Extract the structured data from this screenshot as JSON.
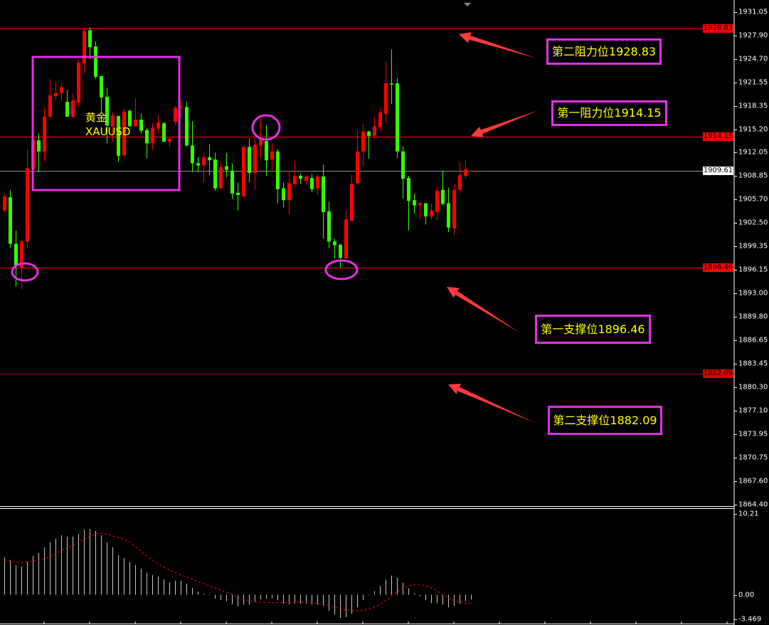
{
  "chart_data": {
    "type": "candlestick",
    "symbol": {
      "cn": "黄金",
      "code": "XAUUSD"
    },
    "colors": {
      "up": "#ff0000",
      "down": "#33ff00",
      "background": "#000000",
      "annotation_box": "#e62ee6",
      "annotation_text": "#ffff00",
      "level_line": "#ff0000",
      "current_price_line": "#8c8c8c"
    },
    "y_range": [
      1864.4,
      1931.05
    ],
    "y_ticks": [
      "1931.05",
      "1927.90",
      "1924.70",
      "1921.55",
      "1918.35",
      "1915.20",
      "1912.05",
      "1908.85",
      "1905.70",
      "1902.50",
      "1899.35",
      "1896.15",
      "1893.00",
      "1889.80",
      "1886.65",
      "1883.45",
      "1880.30",
      "1877.10",
      "1873.95",
      "1870.75",
      "1867.60",
      "1864.40"
    ],
    "current_price": "1909.61",
    "levels": [
      {
        "price": "1928.83",
        "label": "第二阻力位1928.83",
        "kind": "resistance"
      },
      {
        "price": "1914.15",
        "label": "第一阻力位1914.15",
        "kind": "resistance"
      },
      {
        "price": "1896.46",
        "label": "第一支撑位1896.46",
        "kind": "support"
      },
      {
        "price": "1882.09",
        "label": "第二支撑位1882.09",
        "kind": "support"
      }
    ],
    "ohlc": [
      [
        1904.2,
        1906.4,
        1904.0,
        1906.1
      ],
      [
        1906.0,
        1907.0,
        1899.2,
        1899.7
      ],
      [
        1899.7,
        1901.5,
        1893.9,
        1896.8
      ],
      [
        1896.4,
        1900.2,
        1893.6,
        1900.0
      ],
      [
        1900.0,
        1912.4,
        1899.1,
        1909.9
      ],
      [
        1909.8,
        1914.4,
        1909.6,
        1913.7
      ],
      [
        1913.7,
        1914.6,
        1909.4,
        1912.2
      ],
      [
        1912.2,
        1918.0,
        1910.8,
        1916.9
      ],
      [
        1916.9,
        1922.0,
        1916.7,
        1919.8
      ],
      [
        1919.7,
        1921.6,
        1919.2,
        1920.1
      ],
      [
        1920.1,
        1921.5,
        1919.0,
        1920.9
      ],
      [
        1918.9,
        1920.5,
        1916.9,
        1916.9
      ],
      [
        1916.9,
        1920.0,
        1916.7,
        1919.1
      ],
      [
        1918.8,
        1924.6,
        1918.2,
        1924.2
      ],
      [
        1924.1,
        1928.8,
        1922.7,
        1928.5
      ],
      [
        1928.6,
        1929.0,
        1924.7,
        1926.3
      ],
      [
        1926.4,
        1927.1,
        1922.0,
        1922.3
      ],
      [
        1922.4,
        1922.4,
        1917.6,
        1919.5
      ],
      [
        1919.6,
        1920.8,
        1913.3,
        1915.7
      ],
      [
        1915.6,
        1917.5,
        1913.5,
        1917.1
      ],
      [
        1917.0,
        1917.0,
        1910.8,
        1911.6
      ],
      [
        1911.7,
        1918.0,
        1911.5,
        1917.6
      ],
      [
        1917.7,
        1917.9,
        1915.5,
        1915.6
      ],
      [
        1915.6,
        1919.4,
        1915.6,
        1916.5
      ],
      [
        1916.5,
        1917.3,
        1914.6,
        1915.0
      ],
      [
        1915.1,
        1915.3,
        1911.3,
        1913.3
      ],
      [
        1913.3,
        1916.0,
        1912.5,
        1915.4
      ],
      [
        1915.3,
        1917.1,
        1914.7,
        1916.1
      ],
      [
        1916.0,
        1916.2,
        1913.5,
        1913.5
      ],
      [
        1913.5,
        1914.1,
        1912.8,
        1913.9
      ],
      [
        1916.2,
        1918.4,
        1915.8,
        1918.1
      ],
      [
        1918.2,
        1919.1,
        1916.8,
        1918.3
      ],
      [
        1918.2,
        1918.9,
        1912.9,
        1913.0
      ],
      [
        1913.0,
        1916.3,
        1909.4,
        1910.6
      ],
      [
        1910.6,
        1911.4,
        1909.4,
        1910.3
      ],
      [
        1910.3,
        1912.0,
        1908.0,
        1911.4
      ],
      [
        1911.4,
        1913.2,
        1909.0,
        1911.0
      ],
      [
        1911.1,
        1912.0,
        1906.9,
        1907.2
      ],
      [
        1907.2,
        1910.6,
        1907.2,
        1910.1
      ],
      [
        1910.2,
        1912.0,
        1908.7,
        1909.7
      ],
      [
        1909.6,
        1910.6,
        1905.8,
        1906.5
      ],
      [
        1906.6,
        1908.0,
        1904.2,
        1906.3
      ],
      [
        1906.1,
        1912.9,
        1906.0,
        1912.8
      ],
      [
        1912.8,
        1914.0,
        1908.0,
        1909.3
      ],
      [
        1909.3,
        1914.2,
        1907.0,
        1913.1
      ],
      [
        1913.0,
        1916.7,
        1911.4,
        1913.9
      ],
      [
        1913.6,
        1915.7,
        1908.9,
        1911.0
      ],
      [
        1911.1,
        1913.3,
        1909.7,
        1912.2
      ],
      [
        1912.2,
        1912.5,
        1905.2,
        1907.1
      ],
      [
        1907.2,
        1908.0,
        1904.6,
        1905.6
      ],
      [
        1905.6,
        1909.4,
        1903.7,
        1907.9
      ],
      [
        1907.8,
        1910.9,
        1907.5,
        1908.9
      ],
      [
        1908.9,
        1909.2,
        1907.8,
        1908.5
      ],
      [
        1908.2,
        1909.0,
        1907.7,
        1908.8
      ],
      [
        1908.6,
        1909.2,
        1906.7,
        1907.1
      ],
      [
        1907.2,
        1909.1,
        1906.3,
        1908.8
      ],
      [
        1908.8,
        1910.4,
        1900.4,
        1904.0
      ],
      [
        1904.1,
        1905.4,
        1899.1,
        1900.0
      ],
      [
        1900.0,
        1900.4,
        1897.7,
        1899.5
      ],
      [
        1899.6,
        1899.6,
        1896.5,
        1897.8
      ],
      [
        1897.7,
        1904.3,
        1897.7,
        1903.0
      ],
      [
        1902.8,
        1909.0,
        1902.8,
        1907.8
      ],
      [
        1907.9,
        1915.0,
        1907.7,
        1912.2
      ],
      [
        1912.2,
        1915.9,
        1910.2,
        1914.9
      ],
      [
        1914.9,
        1915.0,
        1911.2,
        1914.3
      ],
      [
        1914.3,
        1916.8,
        1914.0,
        1915.6
      ],
      [
        1915.5,
        1918.1,
        1914.9,
        1917.5
      ],
      [
        1917.3,
        1924.3,
        1916.1,
        1921.4
      ],
      [
        1921.4,
        1926.0,
        1918.6,
        1921.3
      ],
      [
        1921.4,
        1922.1,
        1911.3,
        1912.2
      ],
      [
        1912.2,
        1912.9,
        1905.8,
        1908.5
      ],
      [
        1908.6,
        1908.9,
        1901.5,
        1905.5
      ],
      [
        1905.6,
        1906.5,
        1903.8,
        1904.9
      ],
      [
        1904.9,
        1905.3,
        1903.0,
        1905.2
      ],
      [
        1905.2,
        1905.2,
        1902.3,
        1903.4
      ],
      [
        1903.4,
        1905.1,
        1903.0,
        1904.2
      ],
      [
        1904.0,
        1907.4,
        1902.9,
        1906.9
      ],
      [
        1907.0,
        1909.6,
        1904.9,
        1905.1
      ],
      [
        1905.2,
        1907.3,
        1901.3,
        1901.9
      ],
      [
        1901.8,
        1907.7,
        1900.9,
        1907.0
      ],
      [
        1907.0,
        1910.8,
        1906.6,
        1909.0
      ],
      [
        1908.9,
        1911.0,
        1908.6,
        1909.8
      ],
      [
        1909.6,
        1909.7,
        1909.6,
        1909.6
      ]
    ],
    "macd": {
      "y_ticks": [
        "10.21",
        "0.00",
        "-3.469"
      ],
      "y_range": [
        -3.469,
        10.21
      ],
      "histogram": [
        4.54,
        4.22,
        3.59,
        3.42,
        4.02,
        4.71,
        5.06,
        5.75,
        6.35,
        6.78,
        7.21,
        7.04,
        7.04,
        7.39,
        7.9,
        7.99,
        7.73,
        7.21,
        6.35,
        5.75,
        4.8,
        4.45,
        3.94,
        3.59,
        3.16,
        2.64,
        2.39,
        2.21,
        1.87,
        1.52,
        1.7,
        1.7,
        1.35,
        0.83,
        0.4,
        0.14,
        0.06,
        -0.46,
        -0.63,
        -0.8,
        -1.15,
        -1.41,
        -1.18,
        -1.18,
        -0.86,
        -0.57,
        -0.49,
        -0.4,
        -0.66,
        -1.09,
        -1.18,
        -1.09,
        -1.09,
        -1.09,
        -1.18,
        -1.18,
        -1.35,
        -1.95,
        -2.39,
        -2.82,
        -2.73,
        -2.3,
        -1.52,
        -0.66,
        -0.05,
        0.43,
        1.03,
        1.81,
        2.33,
        2.07,
        1.47,
        0.78,
        0.17,
        -0.17,
        -0.66,
        -1.01,
        -1.01,
        -1.18,
        -1.52,
        -1.35,
        -1.09,
        -0.75,
        -0.57
      ],
      "signal": [
        4.17,
        4.1,
        3.95,
        3.9,
        3.95,
        4.08,
        4.2,
        4.38,
        4.6,
        4.95,
        5.35,
        5.65,
        6.0,
        6.35,
        6.7,
        7.1,
        7.35,
        7.45,
        7.35,
        7.15,
        6.95,
        6.7,
        6.4,
        5.85,
        5.25,
        4.7,
        4.2,
        3.75,
        3.35,
        3.05,
        2.7,
        2.4,
        2.15,
        1.9,
        1.6,
        1.35,
        1.05,
        0.85,
        0.55,
        0.3,
        0.05,
        -0.3,
        -0.55,
        -0.72,
        -0.85,
        -0.9,
        -0.95,
        -0.97,
        -0.97,
        -0.95,
        -0.92,
        -0.9,
        -0.9,
        -0.95,
        -1.0,
        -1.05,
        -1.15,
        -1.3,
        -1.5,
        -1.65,
        -1.85,
        -1.93,
        -1.93,
        -1.9,
        -1.75,
        -1.5,
        -1.15,
        -0.7,
        -0.2,
        0.35,
        0.8,
        1.05,
        1.18,
        1.2,
        1.1,
        0.85,
        0.5,
        0.0,
        -0.4,
        -0.7,
        -0.9,
        -1.02,
        -1.05
      ],
      "colors": {
        "histogram": "#c8c8c8",
        "signal": "#ff0000"
      }
    },
    "grid": false
  }
}
